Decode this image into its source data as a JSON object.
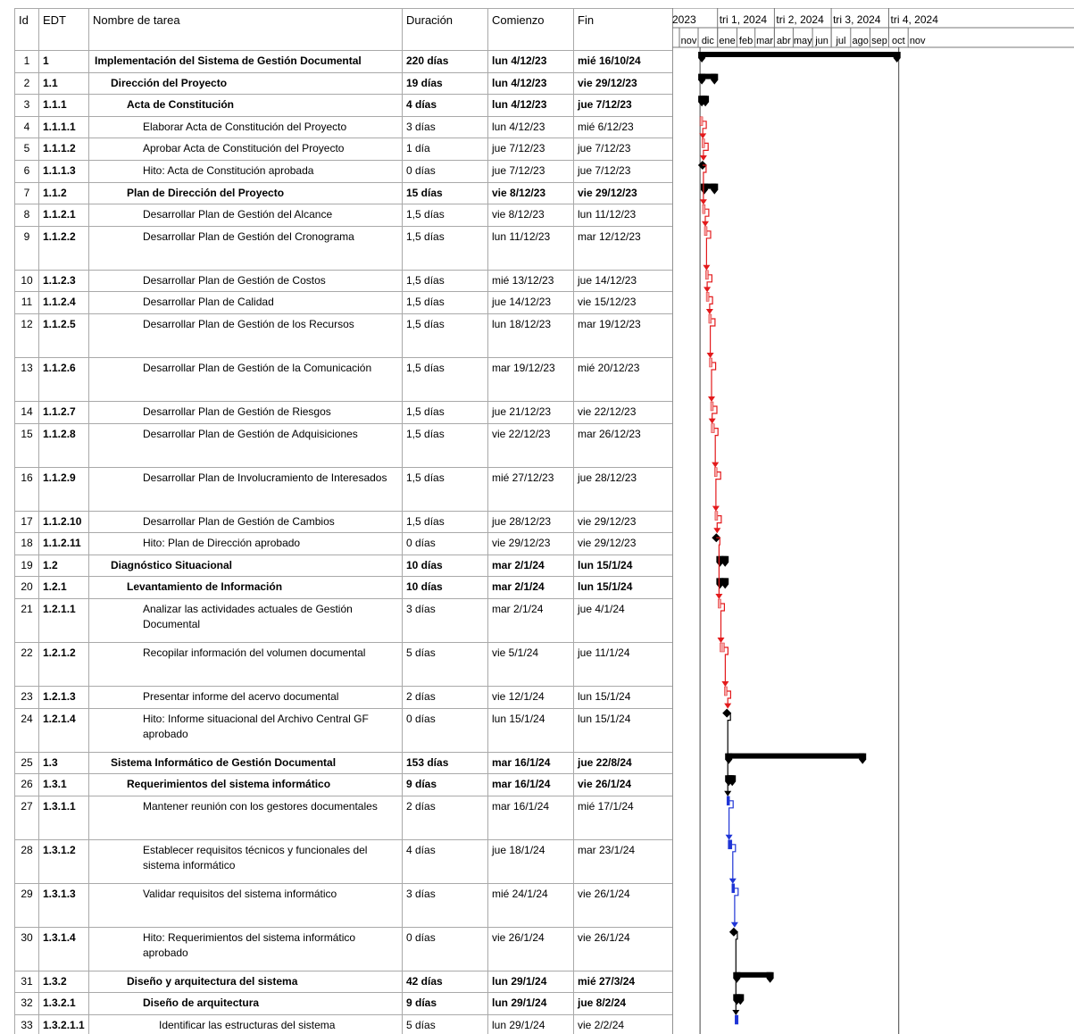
{
  "headers": {
    "id": "Id",
    "edt": "EDT",
    "name": "Nombre de tarea",
    "duration": "Duración",
    "start": "Comienzo",
    "finish": "Fin"
  },
  "timescale": {
    "top": [
      "2023",
      "tri 1, 2024",
      "tri 2, 2024",
      "tri 3, 2024",
      "tri 4, 2024"
    ],
    "bottom": [
      "nov",
      "dic",
      "ene",
      "feb",
      "mar",
      "abr",
      "may",
      "jun",
      "jul",
      "ago",
      "sep",
      "oct",
      "nov"
    ]
  },
  "colors": {
    "summary_bar": "#000000",
    "critical": "#e31a1c",
    "critical_light": "#f4a0a0",
    "normal_link": "#1f35d6",
    "grid": "#a9a9a9"
  },
  "tasks": [
    {
      "id": "1",
      "edt": "1",
      "name": "Implementación del Sistema de Gestión Documental",
      "duration": "220 días",
      "start": "lun 4/12/23",
      "finish": "mié 16/10/24",
      "level": 0,
      "bold": true
    },
    {
      "id": "2",
      "edt": "1.1",
      "name": "Dirección del Proyecto",
      "duration": "19 días",
      "start": "lun 4/12/23",
      "finish": "vie 29/12/23",
      "level": 1,
      "bold": true
    },
    {
      "id": "3",
      "edt": "1.1.1",
      "name": "Acta de Constitución",
      "duration": "4 días",
      "start": "lun 4/12/23",
      "finish": "jue 7/12/23",
      "level": 2,
      "bold": true
    },
    {
      "id": "4",
      "edt": "1.1.1.1",
      "name": "Elaborar Acta de Constitución del Proyecto",
      "duration": "3 días",
      "start": "lun 4/12/23",
      "finish": "mié 6/12/23",
      "level": 3,
      "bold": false
    },
    {
      "id": "5",
      "edt": "1.1.1.2",
      "name": "Aprobar Acta de Constitución del Proyecto",
      "duration": "1 día",
      "start": "jue 7/12/23",
      "finish": "jue 7/12/23",
      "level": 3,
      "bold": false
    },
    {
      "id": "6",
      "edt": "1.1.1.3",
      "name": "Hito: Acta de Constitución aprobada",
      "duration": "0 días",
      "start": "jue 7/12/23",
      "finish": "jue 7/12/23",
      "level": 3,
      "bold": false
    },
    {
      "id": "7",
      "edt": "1.1.2",
      "name": "Plan de Dirección del Proyecto",
      "duration": "15 días",
      "start": "vie 8/12/23",
      "finish": "vie 29/12/23",
      "level": 2,
      "bold": true
    },
    {
      "id": "8",
      "edt": "1.1.2.1",
      "name": "Desarrollar Plan de Gestión del Alcance",
      "duration": "1,5 días",
      "start": "vie 8/12/23",
      "finish": "lun 11/12/23",
      "level": 3,
      "bold": false
    },
    {
      "id": "9",
      "edt": "1.1.2.2",
      "name": "Desarrollar Plan de Gestión del Cronograma",
      "duration": "1,5 días",
      "start": "lun 11/12/23",
      "finish": "mar 12/12/23",
      "level": 3,
      "bold": false
    },
    {
      "id": "10",
      "edt": "1.1.2.3",
      "name": "Desarrollar Plan de Gestión de Costos",
      "duration": "1,5 días",
      "start": "mié 13/12/23",
      "finish": "jue 14/12/23",
      "level": 3,
      "bold": false
    },
    {
      "id": "11",
      "edt": "1.1.2.4",
      "name": "Desarrollar Plan de Calidad",
      "duration": "1,5 días",
      "start": "jue 14/12/23",
      "finish": "vie 15/12/23",
      "level": 3,
      "bold": false
    },
    {
      "id": "12",
      "edt": "1.1.2.5",
      "name": "Desarrollar Plan de Gestión de los Recursos",
      "duration": "1,5 días",
      "start": "lun 18/12/23",
      "finish": "mar 19/12/23",
      "level": 3,
      "bold": false
    },
    {
      "id": "13",
      "edt": "1.1.2.6",
      "name": "Desarrollar Plan de Gestión de la Comunicación",
      "duration": "1,5 días",
      "start": "mar 19/12/23",
      "finish": "mié 20/12/23",
      "level": 3,
      "bold": false
    },
    {
      "id": "14",
      "edt": "1.1.2.7",
      "name": "Desarrollar Plan de Gestión de Riesgos",
      "duration": "1,5 días",
      "start": "jue 21/12/23",
      "finish": "vie 22/12/23",
      "level": 3,
      "bold": false
    },
    {
      "id": "15",
      "edt": "1.1.2.8",
      "name": "Desarrollar Plan de Gestión de Adquisiciones",
      "duration": "1,5 días",
      "start": "vie 22/12/23",
      "finish": "mar 26/12/23",
      "level": 3,
      "bold": false
    },
    {
      "id": "16",
      "edt": "1.1.2.9",
      "name": "Desarrollar Plan de Involucramiento de Interesados",
      "duration": "1,5 días",
      "start": "mié 27/12/23",
      "finish": "jue 28/12/23",
      "level": 3,
      "bold": false
    },
    {
      "id": "17",
      "edt": "1.1.2.10",
      "name": "Desarrollar Plan de Gestión de Cambios",
      "duration": "1,5 días",
      "start": "jue 28/12/23",
      "finish": "vie 29/12/23",
      "level": 3,
      "bold": false
    },
    {
      "id": "18",
      "edt": "1.1.2.11",
      "name": "Hito: Plan de Dirección aprobado",
      "duration": "0 días",
      "start": "vie 29/12/23",
      "finish": "vie 29/12/23",
      "level": 3,
      "bold": false
    },
    {
      "id": "19",
      "edt": "1.2",
      "name": "Diagnóstico Situacional",
      "duration": "10 días",
      "start": "mar 2/1/24",
      "finish": "lun 15/1/24",
      "level": 1,
      "bold": true
    },
    {
      "id": "20",
      "edt": "1.2.1",
      "name": "Levantamiento de Información",
      "duration": "10 días",
      "start": "mar 2/1/24",
      "finish": "lun 15/1/24",
      "level": 2,
      "bold": true
    },
    {
      "id": "21",
      "edt": "1.2.1.1",
      "name": "Analizar las actividades actuales de Gestión Documental",
      "duration": "3 días",
      "start": "mar 2/1/24",
      "finish": "jue 4/1/24",
      "level": 3,
      "bold": false
    },
    {
      "id": "22",
      "edt": "1.2.1.2",
      "name": "Recopilar información del volumen documental",
      "duration": "5 días",
      "start": "vie 5/1/24",
      "finish": "jue 11/1/24",
      "level": 3,
      "bold": false
    },
    {
      "id": "23",
      "edt": "1.2.1.3",
      "name": "Presentar informe del acervo documental",
      "duration": "2 días",
      "start": "vie 12/1/24",
      "finish": "lun 15/1/24",
      "level": 3,
      "bold": false
    },
    {
      "id": "24",
      "edt": "1.2.1.4",
      "name": "Hito: Informe situacional del Archivo Central GF aprobado",
      "duration": "0 días",
      "start": "lun 15/1/24",
      "finish": "lun 15/1/24",
      "level": 3,
      "bold": false
    },
    {
      "id": "25",
      "edt": "1.3",
      "name": "Sistema Informático de Gestión Documental",
      "duration": "153 días",
      "start": "mar 16/1/24",
      "finish": "jue 22/8/24",
      "level": 1,
      "bold": true
    },
    {
      "id": "26",
      "edt": "1.3.1",
      "name": "Requerimientos del sistema informático",
      "duration": "9 días",
      "start": "mar 16/1/24",
      "finish": "vie 26/1/24",
      "level": 2,
      "bold": true
    },
    {
      "id": "27",
      "edt": "1.3.1.1",
      "name": "Mantener reunión con los gestores documentales",
      "duration": "2 días",
      "start": "mar 16/1/24",
      "finish": "mié 17/1/24",
      "level": 3,
      "bold": false
    },
    {
      "id": "28",
      "edt": "1.3.1.2",
      "name": "Establecer requisitos técnicos y funcionales del sistema informático",
      "duration": "4 días",
      "start": "jue 18/1/24",
      "finish": "mar 23/1/24",
      "level": 3,
      "bold": false
    },
    {
      "id": "29",
      "edt": "1.3.1.3",
      "name": "Validar requisitos del sistema informático",
      "duration": "3 días",
      "start": "mié 24/1/24",
      "finish": "vie 26/1/24",
      "level": 3,
      "bold": false
    },
    {
      "id": "30",
      "edt": "1.3.1.4",
      "name": "Hito: Requerimientos del sistema informático aprobado",
      "duration": "0 días",
      "start": "vie 26/1/24",
      "finish": "vie 26/1/24",
      "level": 3,
      "bold": false
    },
    {
      "id": "31",
      "edt": "1.3.2",
      "name": "Diseño y arquitectura del sistema",
      "duration": "42 días",
      "start": "lun 29/1/24",
      "finish": "mié 27/3/24",
      "level": 2,
      "bold": true
    },
    {
      "id": "32",
      "edt": "1.3.2.1",
      "name": "Diseño de arquitectura",
      "duration": "9 días",
      "start": "lun 29/1/24",
      "finish": "jue 8/2/24",
      "level": 3,
      "bold": true
    },
    {
      "id": "33",
      "edt": "1.3.2.1.1",
      "name": "Identificar las estructuras del sistema",
      "duration": "5 días",
      "start": "lun 29/1/24",
      "finish": "vie 2/2/24",
      "level": 4,
      "bold": false
    }
  ]
}
